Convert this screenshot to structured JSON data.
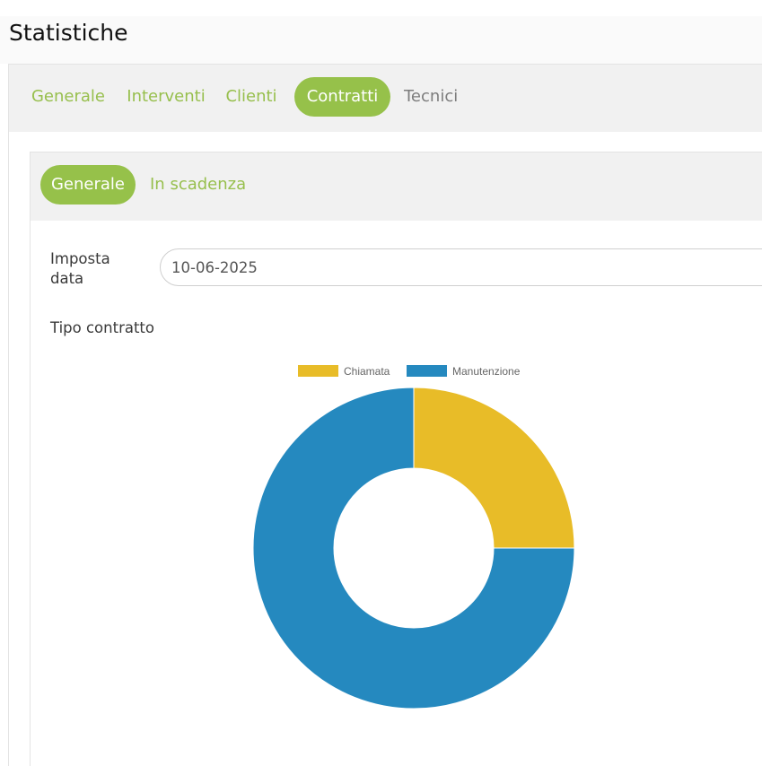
{
  "page": {
    "title": "Statistiche"
  },
  "main_tabs": [
    {
      "label": "Generale"
    },
    {
      "label": "Interventi"
    },
    {
      "label": "Clienti"
    },
    {
      "label": "Contratti"
    },
    {
      "label": "Tecnici"
    }
  ],
  "sub_tabs": [
    {
      "label": "Generale"
    },
    {
      "label": "In scadenza"
    }
  ],
  "form": {
    "date_label": "Imposta data",
    "date_value": "10-06-2025",
    "section_label": "Tipo contratto"
  },
  "colors": {
    "accent": "#96c14a",
    "chiamata": "#e8bc28",
    "manutenzione": "#2589bf"
  },
  "chart_data": {
    "type": "pie",
    "variant": "doughnut",
    "legend_position": "top",
    "categories": [
      "Chiamata",
      "Manutenzione"
    ],
    "values": [
      25,
      75
    ],
    "title": ""
  }
}
